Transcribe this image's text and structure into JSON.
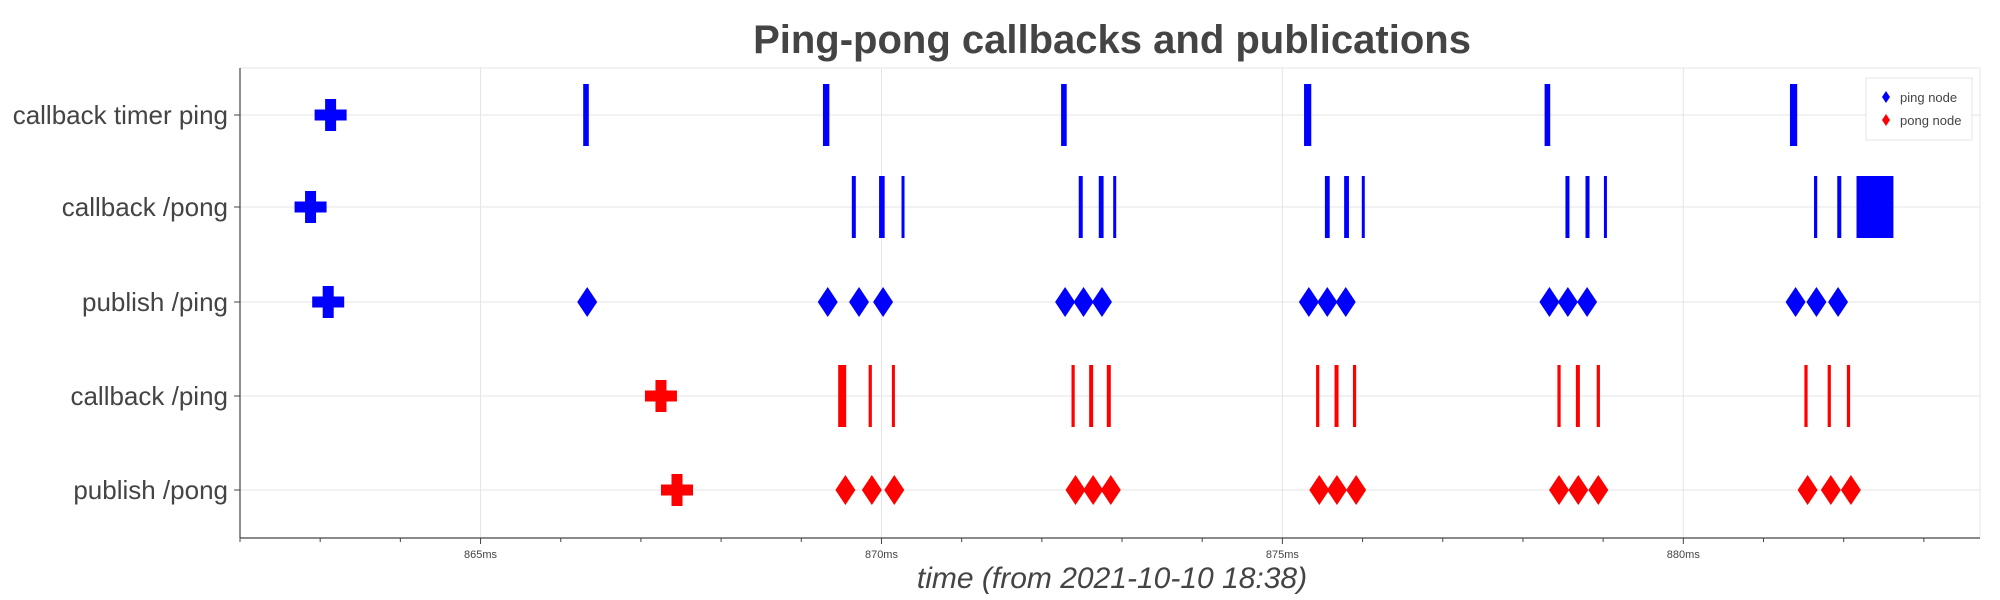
{
  "chart_data": {
    "type": "scatter",
    "title": "Ping-pong callbacks and publications",
    "xlabel": "time (from 2021-10-10 18:38)",
    "x_unit": "ms",
    "xlim": [
      862.0,
      883.7
    ],
    "x_ticks": [
      {
        "value": 865,
        "label": "865ms"
      },
      {
        "value": 870,
        "label": "870ms"
      },
      {
        "value": 875,
        "label": "875ms"
      },
      {
        "value": 880,
        "label": "880ms"
      }
    ],
    "categories": [
      "callback timer ping",
      "callback /pong",
      "publish /ping",
      "callback /ping",
      "publish /pong"
    ],
    "legend": {
      "position": "top-right",
      "entries": [
        {
          "label": "ping node",
          "color": "#0000ff"
        },
        {
          "label": "pong node",
          "color": "#ff0000"
        }
      ]
    },
    "series": [
      {
        "name": "ping node",
        "color": "#0000ff",
        "callbacks": [
          {
            "category": "callback timer ping",
            "spans": [
              [
                866.28,
                866.35
              ],
              [
                869.27,
                869.35
              ],
              [
                872.24,
                872.31
              ],
              [
                875.27,
                875.36
              ],
              [
                878.27,
                878.34
              ],
              [
                881.33,
                881.42
              ]
            ]
          },
          {
            "category": "callback /pong",
            "spans": [
              [
                869.63,
                869.68
              ],
              [
                869.97,
                870.04
              ],
              [
                870.25,
                870.28
              ],
              [
                872.46,
                872.51
              ],
              [
                872.71,
                872.77
              ],
              [
                872.89,
                872.92
              ],
              [
                875.53,
                875.59
              ],
              [
                875.77,
                875.83
              ],
              [
                875.99,
                876.02
              ],
              [
                878.53,
                878.58
              ],
              [
                878.78,
                878.83
              ],
              [
                879.01,
                879.04
              ],
              [
                881.63,
                881.67
              ],
              [
                881.92,
                881.97
              ],
              [
                882.16,
                882.62
              ]
            ]
          }
        ],
        "publishes": [
          {
            "category": "publish /ping",
            "times": [
              866.33,
              869.33,
              869.72,
              870.02,
              872.29,
              872.52,
              872.75,
              875.33,
              875.56,
              875.79,
              878.33,
              878.56,
              878.8,
              881.4,
              881.66,
              881.93
            ]
          }
        ],
        "startup": [
          {
            "category": "callback timer ping",
            "time": 863.13
          },
          {
            "category": "callback /pong",
            "time": 862.88
          },
          {
            "category": "publish /ping",
            "time": 863.1
          }
        ]
      },
      {
        "name": "pong node",
        "color": "#ff0000",
        "callbacks": [
          {
            "category": "callback /ping",
            "spans": [
              [
                869.46,
                869.56
              ],
              [
                869.84,
                869.88
              ],
              [
                870.13,
                870.16
              ],
              [
                872.37,
                872.41
              ],
              [
                872.59,
                872.64
              ],
              [
                872.81,
                872.86
              ],
              [
                875.42,
                875.46
              ],
              [
                875.65,
                875.7
              ],
              [
                875.88,
                875.92
              ],
              [
                878.43,
                878.47
              ],
              [
                878.66,
                878.71
              ],
              [
                878.92,
                878.96
              ],
              [
                881.51,
                881.55
              ],
              [
                881.8,
                881.84
              ],
              [
                882.04,
                882.08
              ]
            ]
          }
        ],
        "publishes": [
          {
            "category": "publish /pong",
            "times": [
              869.55,
              869.88,
              870.16,
              872.42,
              872.64,
              872.86,
              875.46,
              875.68,
              875.92,
              878.45,
              878.69,
              878.94,
              881.55,
              881.84,
              882.09
            ]
          }
        ],
        "startup": [
          {
            "category": "callback /ping",
            "time": 867.25
          },
          {
            "category": "publish /pong",
            "time": 867.45
          }
        ]
      }
    ]
  }
}
